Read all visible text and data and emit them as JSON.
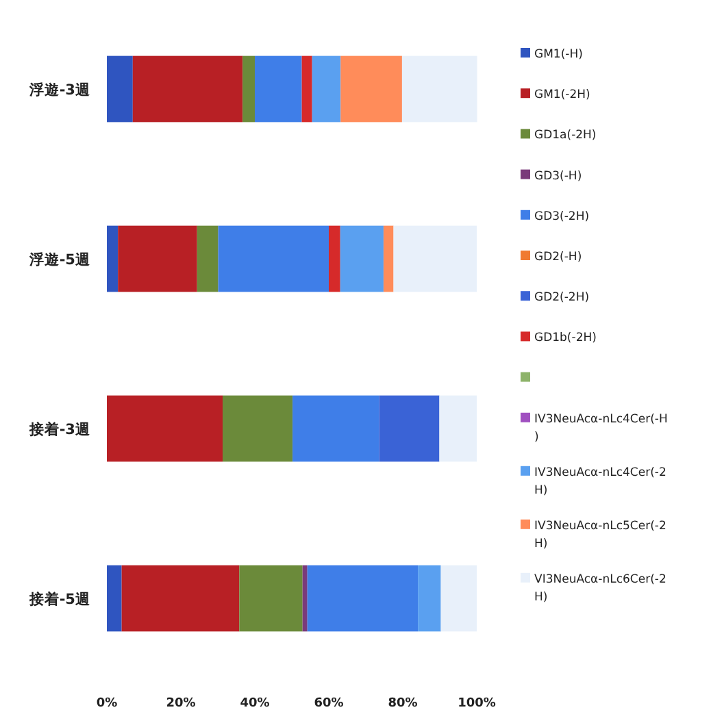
{
  "chart_data": {
    "type": "bar",
    "orientation": "horizontal",
    "stacked": true,
    "categories": [
      "浮遊-3週",
      "浮遊-5週",
      "接着-3週",
      "接着-5週"
    ],
    "xlim": [
      0,
      100
    ],
    "xticks": [
      {
        "value": 0,
        "label": "0%"
      },
      {
        "value": 20,
        "label": "20%"
      },
      {
        "value": 40,
        "label": "40%"
      },
      {
        "value": 60,
        "label": "60%"
      },
      {
        "value": 80,
        "label": "80%"
      },
      {
        "value": 100,
        "label": "100%"
      }
    ],
    "grid": false,
    "legend": "right",
    "series": [
      {
        "name": "GM1(-H)",
        "color": "#2f55c0",
        "values": [
          7.0,
          3.0,
          0,
          4.0
        ]
      },
      {
        "name": "GM1(-2H)",
        "color": "#b82025",
        "values": [
          29.7,
          21.4,
          31.3,
          31.8
        ]
      },
      {
        "name": "GD1a(-2H)",
        "color": "#6b8a3a",
        "values": [
          3.3,
          5.7,
          18.9,
          17.1
        ]
      },
      {
        "name": "GD3(-H)",
        "color": "#7a3a7a",
        "values": [
          0,
          0,
          0,
          1.3
        ]
      },
      {
        "name": "GD3(-2H)",
        "color": "#3f7ee8",
        "values": [
          12.7,
          29.9,
          23.4,
          29.9
        ]
      },
      {
        "name": "GD2(-H)",
        "color": "#f07a30",
        "values": [
          0,
          0,
          0,
          0
        ]
      },
      {
        "name": "GD2(-2H)",
        "color": "#3a63d6",
        "values": [
          0,
          0,
          16.3,
          0
        ]
      },
      {
        "name": "GD1b(-2H)",
        "color": "#d62a2a",
        "values": [
          2.8,
          3.1,
          0,
          0
        ]
      },
      {
        "color": "#8db36a",
        "values": [
          0,
          0,
          0,
          0
        ]
      },
      {
        "name": "IV3NeuAcα-nLc4Cer(-H)",
        "color": "#a050c0",
        "values": [
          0,
          0,
          0,
          0
        ]
      },
      {
        "name": "IV3NeuAcα-nLc4Cer(-2H)",
        "color": "#5aa0f0",
        "values": [
          7.7,
          11.7,
          0,
          6.2
        ]
      },
      {
        "name": "IV3NeuAcα-nLc5Cer(-2H)",
        "color": "#ff8c5a",
        "values": [
          16.6,
          2.7,
          0,
          0
        ]
      },
      {
        "name": "VI3NeuAcα-nLc6Cer(-2H)",
        "color": "#e8f0fa",
        "values": [
          20.3,
          22.5,
          10.1,
          9.7
        ]
      }
    ]
  }
}
